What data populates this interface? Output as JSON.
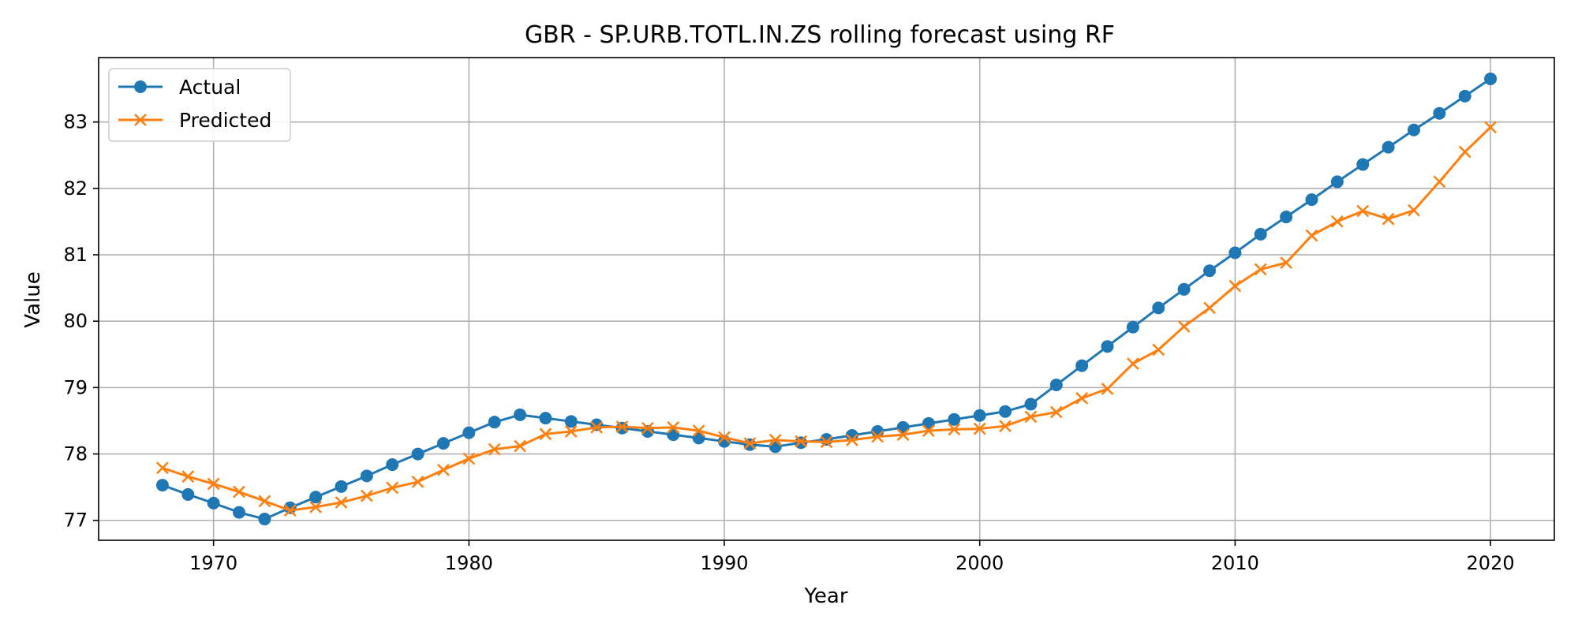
{
  "chart_data": {
    "type": "line",
    "title": "GBR - SP.URB.TOTL.IN.ZS rolling forecast using RF",
    "xlabel": "Year",
    "ylabel": "Value",
    "xlim": [
      1965.5,
      2022.5
    ],
    "ylim": [
      76.7,
      83.97
    ],
    "x_ticks": [
      1970,
      1980,
      1990,
      2000,
      2010,
      2020
    ],
    "y_ticks": [
      77,
      78,
      79,
      80,
      81,
      82,
      83
    ],
    "grid": true,
    "legend_position": "top-left",
    "x": [
      1968,
      1969,
      1970,
      1971,
      1972,
      1973,
      1974,
      1975,
      1976,
      1977,
      1978,
      1979,
      1980,
      1981,
      1982,
      1983,
      1984,
      1985,
      1986,
      1987,
      1988,
      1989,
      1990,
      1991,
      1992,
      1993,
      1994,
      1995,
      1996,
      1997,
      1998,
      1999,
      2000,
      2001,
      2002,
      2003,
      2004,
      2005,
      2006,
      2007,
      2008,
      2009,
      2010,
      2011,
      2012,
      2013,
      2014,
      2015,
      2016,
      2017,
      2018,
      2019,
      2020
    ],
    "series": [
      {
        "name": "Actual",
        "color": "#1f77b4",
        "marker": "circle",
        "values": [
          77.53,
          77.39,
          77.26,
          77.12,
          77.02,
          77.19,
          77.35,
          77.51,
          77.67,
          77.84,
          78.0,
          78.16,
          78.32,
          78.48,
          78.59,
          78.54,
          78.49,
          78.44,
          78.39,
          78.34,
          78.29,
          78.24,
          78.19,
          78.14,
          78.11,
          78.17,
          78.22,
          78.28,
          78.34,
          78.4,
          78.46,
          78.52,
          78.58,
          78.64,
          78.75,
          79.04,
          79.33,
          79.62,
          79.91,
          80.2,
          80.48,
          80.76,
          81.03,
          81.31,
          81.57,
          81.83,
          82.1,
          82.36,
          82.62,
          82.88,
          83.13,
          83.39,
          83.65
        ]
      },
      {
        "name": "Predicted",
        "color": "#ff7f0e",
        "marker": "x",
        "values": [
          77.79,
          77.66,
          77.55,
          77.43,
          77.29,
          77.15,
          77.2,
          77.27,
          77.37,
          77.49,
          77.58,
          77.76,
          77.93,
          78.07,
          78.12,
          78.3,
          78.34,
          78.4,
          78.41,
          78.39,
          78.4,
          78.35,
          78.25,
          78.16,
          78.21,
          78.19,
          78.18,
          78.21,
          78.26,
          78.29,
          78.35,
          78.37,
          78.38,
          78.42,
          78.56,
          78.63,
          78.84,
          78.98,
          79.36,
          79.57,
          79.92,
          80.2,
          80.53,
          80.78,
          80.88,
          81.29,
          81.5,
          81.66,
          81.54,
          81.67,
          82.1,
          82.55,
          82.92
        ]
      }
    ]
  }
}
